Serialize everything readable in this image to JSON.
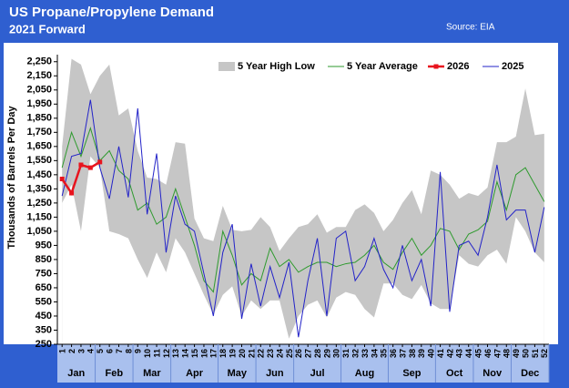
{
  "chart_data": {
    "type": "line",
    "title": "US Propane/Propylene Demand",
    "subtitle": "2021 Forward",
    "source": "Source: EIA",
    "y_label": "Thousands of Barrels Per Day",
    "legend": "top",
    "categories": [
      "1",
      "2",
      "3",
      "4",
      "5",
      "6",
      "7",
      "8",
      "9",
      "10",
      "11",
      "12",
      "13",
      "14",
      "15",
      "16",
      "17",
      "18",
      "19",
      "20",
      "21",
      "22",
      "23",
      "24",
      "25",
      "26",
      "27",
      "28",
      "29",
      "30",
      "31",
      "32",
      "33",
      "34",
      "35",
      "36",
      "37",
      "38",
      "39",
      "40",
      "41",
      "42",
      "43",
      "44",
      "45",
      "46",
      "47",
      "48",
      "49",
      "50",
      "51",
      "52"
    ],
    "month_groups": [
      {
        "label": "Jan",
        "weeks": 4
      },
      {
        "label": "Feb",
        "weeks": 4
      },
      {
        "label": "Mar",
        "weeks": 4
      },
      {
        "label": "Apr",
        "weeks": 5
      },
      {
        "label": "May",
        "weeks": 4
      },
      {
        "label": "Jun",
        "weeks": 4
      },
      {
        "label": "Jul",
        "weeks": 5
      },
      {
        "label": "Aug",
        "weeks": 5
      },
      {
        "label": "Sep",
        "weeks": 5
      },
      {
        "label": "Oct",
        "weeks": 4
      },
      {
        "label": "Nov",
        "weeks": 4
      },
      {
        "label": "Dec",
        "weeks": 4
      }
    ],
    "ylim": [
      250,
      2300
    ],
    "yticks": [
      250,
      350,
      450,
      550,
      650,
      750,
      850,
      950,
      {
        "value": 1050,
        "label": "1,050"
      },
      {
        "value": 1150,
        "label": "1,150"
      },
      {
        "value": 1250,
        "label": "1,250"
      },
      {
        "value": 1350,
        "label": "1,350"
      },
      {
        "value": 1450,
        "label": "1,450"
      },
      {
        "value": 1550,
        "label": "1,550"
      },
      {
        "value": 1650,
        "label": "1,650"
      },
      {
        "value": 1750,
        "label": "1,750"
      },
      {
        "value": 1850,
        "label": "1,850"
      },
      {
        "value": 1950,
        "label": "1,950"
      },
      {
        "value": 2050,
        "label": "2,050"
      },
      {
        "value": 2150,
        "label": "2,150"
      },
      {
        "value": 2250,
        "label": "2,250"
      }
    ],
    "series": [
      {
        "name": "5 Year High Low",
        "color": "#c6c6c6",
        "high": [
          1650,
          2270,
          2230,
          2020,
          2150,
          2230,
          1870,
          1920,
          1620,
          1430,
          1420,
          1380,
          1680,
          1670,
          1140,
          1000,
          980,
          1230,
          1060,
          1050,
          1060,
          1150,
          1080,
          910,
          1000,
          1080,
          1100,
          1170,
          1040,
          1080,
          1080,
          1200,
          1240,
          1180,
          1050,
          1130,
          1250,
          1340,
          1170,
          1480,
          1450,
          1380,
          1280,
          1320,
          1300,
          1360,
          1680,
          1680,
          1720,
          2060,
          1730,
          1740
        ],
        "low": [
          1250,
          1380,
          1050,
          1580,
          1500,
          1050,
          1030,
          1000,
          850,
          720,
          900,
          760,
          1000,
          900,
          750,
          600,
          460,
          600,
          660,
          450,
          560,
          500,
          560,
          560,
          290,
          450,
          530,
          560,
          440,
          580,
          620,
          600,
          500,
          440,
          680,
          680,
          600,
          570,
          670,
          540,
          500,
          500,
          880,
          820,
          800,
          880,
          920,
          820,
          1150,
          1050,
          900,
          830
        ]
      },
      {
        "name": "5 Year Average",
        "color": "#2e9a2e",
        "values": [
          1500,
          1750,
          1580,
          1780,
          1550,
          1620,
          1480,
          1420,
          1200,
          1250,
          1100,
          1150,
          1350,
          1150,
          950,
          700,
          620,
          1050,
          880,
          670,
          750,
          700,
          930,
          800,
          850,
          760,
          800,
          830,
          830,
          800,
          820,
          830,
          880,
          950,
          830,
          780,
          900,
          1000,
          880,
          950,
          1070,
          1050,
          920,
          1030,
          1060,
          1120,
          1400,
          1200,
          1450,
          1500,
          1380,
          1260
        ]
      },
      {
        "name": "2026",
        "color": "#e8141e",
        "values": [
          1420,
          1320,
          1520,
          1500,
          1540,
          null,
          null,
          null,
          null,
          null,
          null,
          null,
          null,
          null,
          null,
          null,
          null,
          null,
          null,
          null,
          null,
          null,
          null,
          null,
          null,
          null,
          null,
          null,
          null,
          null,
          null,
          null,
          null,
          null,
          null,
          null,
          null,
          null,
          null,
          null,
          null,
          null,
          null,
          null,
          null,
          null,
          null,
          null,
          null,
          null,
          null,
          null
        ]
      },
      {
        "name": "2025",
        "color": "#2323c8",
        "values": [
          1300,
          1580,
          1600,
          1980,
          1500,
          1280,
          1650,
          1290,
          1920,
          1170,
          1600,
          900,
          1300,
          1100,
          1050,
          750,
          450,
          900,
          1100,
          430,
          820,
          520,
          800,
          580,
          830,
          300,
          700,
          1000,
          450,
          1000,
          1050,
          700,
          800,
          1000,
          780,
          650,
          950,
          700,
          850,
          520,
          1470,
          480,
          950,
          980,
          880,
          1150,
          1520,
          1130,
          1200,
          1200,
          900,
          1220
        ]
      }
    ]
  }
}
